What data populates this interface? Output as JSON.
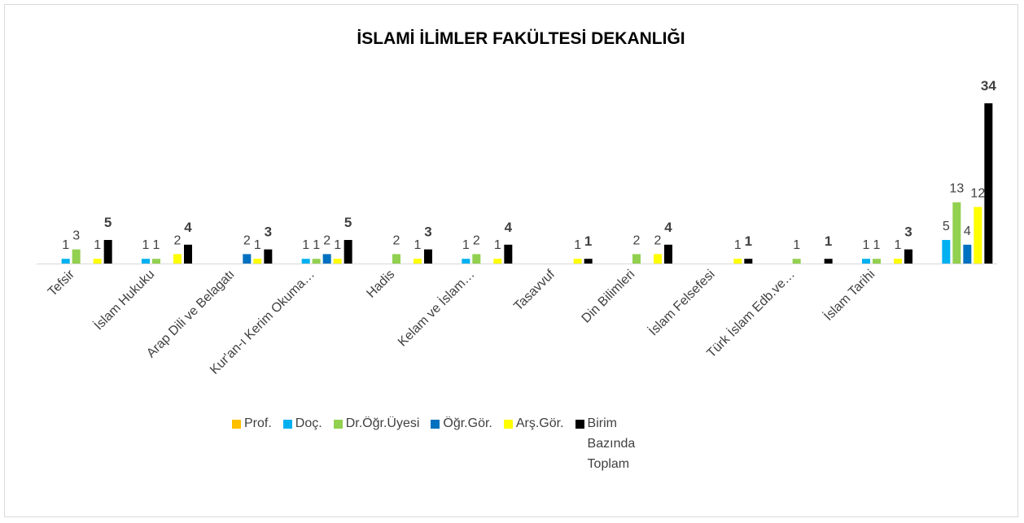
{
  "chart_data": {
    "type": "bar",
    "title": "İSLAMİ İLİMLER FAKÜLTESİ DEKANLIĞI",
    "categories": [
      "Tefsir",
      "İslam Hukuku",
      "Arap Dili ve Belagatı",
      "Kur'an-ı Kerim Okuma…",
      "Hadis",
      "Kelam ve İslam…",
      "Tasavvuf",
      "Din Bilimleri",
      "İslam Felsefesi",
      "Türk İslam Edb.ve…",
      "İslam Tarihi",
      null
    ],
    "series": [
      {
        "name": "Prof.",
        "color": "#ffc000",
        "values": [
          null,
          null,
          null,
          null,
          null,
          null,
          null,
          null,
          null,
          null,
          null,
          null
        ]
      },
      {
        "name": "Doç.",
        "color": "#00b0f0",
        "values": [
          1,
          1,
          null,
          1,
          null,
          1,
          null,
          null,
          null,
          null,
          1,
          5
        ]
      },
      {
        "name": "Dr.Öğr.Üyesi",
        "color": "#92d050",
        "values": [
          3,
          1,
          null,
          1,
          2,
          2,
          null,
          2,
          null,
          1,
          1,
          13
        ]
      },
      {
        "name": "Öğr.Gör.",
        "color": "#0070c0",
        "values": [
          null,
          null,
          2,
          2,
          null,
          null,
          null,
          null,
          null,
          null,
          null,
          4
        ]
      },
      {
        "name": "Arş.Gör.",
        "color": "#ffff00",
        "values": [
          1,
          2,
          1,
          1,
          1,
          1,
          1,
          2,
          1,
          null,
          1,
          12
        ]
      },
      {
        "name": "Birim Bazında Toplam",
        "color": "#000000",
        "values": [
          5,
          4,
          3,
          5,
          3,
          4,
          1,
          4,
          1,
          1,
          3,
          34
        ]
      }
    ],
    "legend": "bottom"
  }
}
